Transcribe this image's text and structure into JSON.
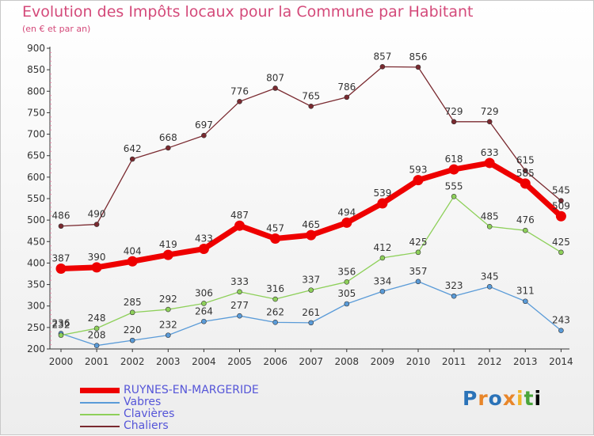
{
  "header": {
    "title": "Evolution des Impôts locaux pour la Commune par Habitant",
    "subtitle": "(en € et par an)"
  },
  "brand": {
    "text": "Proxiti",
    "letters": [
      "P",
      "r",
      "o",
      "x",
      "i",
      "t",
      "i"
    ]
  },
  "chart_data": {
    "type": "line",
    "title": "Evolution des Impôts locaux pour la Commune par Habitant",
    "subtitle": "(en € et par an)",
    "xlabel": "",
    "ylabel": "",
    "x": [
      "2000",
      "2001",
      "2002",
      "2003",
      "2004",
      "2005",
      "2006",
      "2007",
      "2008",
      "2009",
      "2010",
      "2011",
      "2012",
      "2013",
      "2014"
    ],
    "ylim": [
      200,
      900
    ],
    "yticks": [
      200,
      250,
      300,
      350,
      400,
      450,
      500,
      550,
      600,
      650,
      700,
      750,
      800,
      850,
      900
    ],
    "grid": false,
    "legend_position": "bottom-left",
    "series": [
      {
        "name": "RUYNES-EN-MARGERIDE",
        "color": "#ee0000",
        "emphasis": true,
        "values": [
          387,
          390,
          404,
          419,
          433,
          487,
          457,
          465,
          494,
          539,
          593,
          618,
          633,
          585,
          509
        ]
      },
      {
        "name": "Vabres",
        "color": "#5a9bd8",
        "emphasis": false,
        "values": [
          236,
          208,
          220,
          232,
          264,
          277,
          262,
          261,
          305,
          334,
          357,
          323,
          345,
          311,
          243
        ]
      },
      {
        "name": "Clavières",
        "color": "#8ed05a",
        "emphasis": false,
        "values": [
          232,
          248,
          285,
          292,
          306,
          333,
          316,
          337,
          356,
          412,
          425,
          555,
          485,
          476,
          425
        ]
      },
      {
        "name": "Chaliers",
        "color": "#7a2a30",
        "emphasis": false,
        "values": [
          486,
          490,
          642,
          668,
          697,
          776,
          807,
          765,
          786,
          857,
          856,
          729,
          729,
          615,
          545
        ]
      }
    ]
  }
}
